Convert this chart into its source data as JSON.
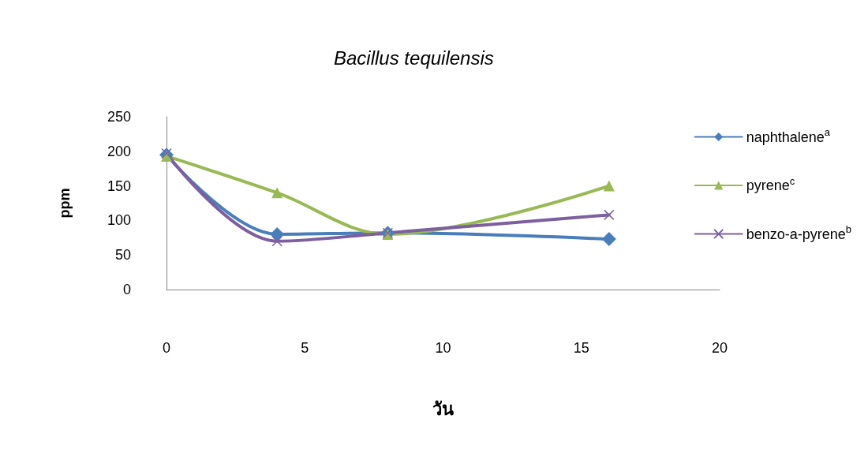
{
  "chart_data": {
    "type": "line",
    "title": "Bacillus tequilensis",
    "xlabel": "วัน",
    "ylabel": "ppm",
    "x": [
      0,
      4,
      8,
      16
    ],
    "series": [
      {
        "name": "naphthalene$^{a}$",
        "color": "#4a7ebb",
        "marker": "diamond",
        "values": [
          195,
          80,
          82,
          73
        ]
      },
      {
        "name": "pyrene$^{c}$",
        "color": "#98b954",
        "marker": "triangle",
        "values": [
          193,
          140,
          80,
          150
        ]
      },
      {
        "name": "benzo-a-pyrene$^{b}$",
        "color": "#7d5fa0",
        "marker": "cross",
        "values": [
          197,
          70,
          82,
          108
        ]
      }
    ],
    "xlim": [
      0,
      20
    ],
    "xticks": [
      0,
      5,
      10,
      15,
      20
    ],
    "ylim": [
      0,
      250
    ],
    "yticks": [
      0,
      50,
      100,
      150,
      200,
      250
    ],
    "grid": false,
    "legend": "right",
    "line_style": "solid"
  }
}
